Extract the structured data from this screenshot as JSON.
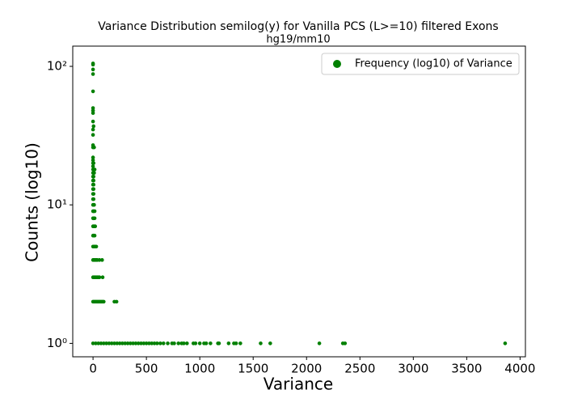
{
  "chart_data": {
    "type": "scatter",
    "title": "Variance Distribution semilog(y) for Vanilla PCS (L>=10) filtered Exons",
    "subtitle": "hg19/mm10",
    "x_label": "Variance",
    "y_label": "Counts (log10)",
    "xlim": [
      -190,
      4050
    ],
    "ylim": [
      0.8,
      140
    ],
    "log_y": true,
    "xticks": [
      0,
      500,
      1000,
      1500,
      2000,
      2500,
      3000,
      3500,
      4000
    ],
    "yticks": [
      {
        "value": 1,
        "label": "10⁰"
      },
      {
        "value": 10,
        "label": "10¹"
      },
      {
        "value": 100,
        "label": "10²"
      }
    ],
    "legend": "upper right",
    "series": [
      {
        "name": "Frequency (log10) of Variance",
        "color": "#008000",
        "x": [
          0,
          25,
          50,
          75,
          100,
          125,
          150,
          175,
          200,
          225,
          250,
          275,
          300,
          325,
          350,
          375,
          400,
          425,
          450,
          475,
          500,
          525,
          550,
          575,
          600,
          630,
          660,
          700,
          740,
          760,
          800,
          830,
          850,
          880,
          940,
          960,
          1000,
          1040,
          1060,
          1100,
          1170,
          1180,
          1270,
          1320,
          1340,
          1380,
          1570,
          1660,
          2120,
          2340,
          2360,
          3860,
          0,
          10,
          20,
          30,
          40,
          50,
          60,
          70,
          80,
          90,
          100,
          200,
          220,
          0,
          10,
          20,
          30,
          40,
          50,
          60,
          90,
          0,
          10,
          20,
          30,
          40,
          60,
          85,
          0,
          10,
          20,
          30,
          0,
          5,
          15,
          0,
          5,
          15,
          20,
          0,
          5,
          15,
          0,
          5,
          15,
          0,
          5,
          10,
          0,
          5,
          0,
          5,
          0,
          5,
          0,
          5,
          0,
          5,
          0,
          5,
          0,
          10,
          0,
          5,
          15,
          0,
          0,
          5,
          0,
          0,
          0,
          10,
          0,
          0,
          0,
          5,
          0,
          0,
          0,
          0,
          0,
          0,
          0,
          0,
          0
        ],
        "values": [
          1,
          1,
          1,
          1,
          1,
          1,
          1,
          1,
          1,
          1,
          1,
          1,
          1,
          1,
          1,
          1,
          1,
          1,
          1,
          1,
          1,
          1,
          1,
          1,
          1,
          1,
          1,
          1,
          1,
          1,
          1,
          1,
          1,
          1,
          1,
          1,
          1,
          1,
          1,
          1,
          1,
          1,
          1,
          1,
          1,
          1,
          1,
          1,
          1,
          1,
          1,
          1,
          2,
          2,
          2,
          2,
          2,
          2,
          2,
          2,
          2,
          2,
          2,
          2,
          2,
          3,
          3,
          3,
          3,
          3,
          3,
          3,
          3,
          4,
          4,
          4,
          4,
          4,
          4,
          4,
          5,
          5,
          5,
          5,
          6,
          6,
          6,
          7,
          7,
          7,
          7,
          8,
          8,
          8,
          9,
          9,
          9,
          10,
          10,
          10,
          11,
          11,
          12,
          12,
          13,
          13,
          14,
          14,
          15,
          15,
          16,
          16,
          17,
          17,
          18,
          18,
          18,
          19,
          20,
          20,
          21,
          22,
          26,
          26,
          27,
          32,
          35,
          37,
          40,
          46,
          48,
          50,
          66,
          88,
          95,
          103,
          105
        ]
      }
    ]
  }
}
